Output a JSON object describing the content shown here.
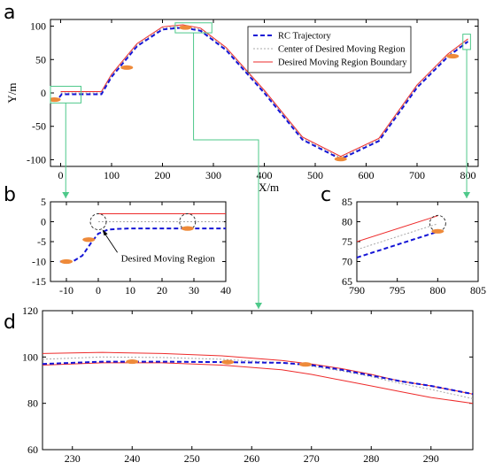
{
  "panels": {
    "a": "a",
    "b": "b",
    "c": "c",
    "d": "d"
  },
  "colors": {
    "trajectory": "#1515d6",
    "center": "#a8a8a8",
    "boundary": "#ee2b2b",
    "vehicle": "#ee8a3a",
    "zoom_box": "#4ec98a",
    "region_circle": "#222222"
  },
  "chart_data": [
    {
      "id": "a",
      "type": "line",
      "xlabel": "X/m",
      "ylabel": "Y/m",
      "xlim": [
        -20,
        820
      ],
      "ylim": [
        -110,
        110
      ],
      "xticks": [
        0,
        100,
        200,
        300,
        400,
        500,
        600,
        700,
        800
      ],
      "yticks": [
        -100,
        -50,
        0,
        50,
        100
      ],
      "legend": {
        "placement": "top-right",
        "entries": [
          "RC Trajectory",
          "Center of Desired Moving Region",
          "Desired Moving Region Boundary"
        ]
      },
      "series": [
        {
          "name": "RC Trajectory",
          "style": "dashed",
          "x": [
            -15,
            -8,
            -2,
            2,
            80,
            100,
            150,
            200,
            240,
            275,
            325,
            400,
            475,
            550,
            625,
            700,
            760,
            800
          ],
          "y": [
            -10,
            -10,
            -6,
            -2,
            -2,
            24,
            70,
            95,
            98,
            93,
            64,
            0,
            -70,
            -99,
            -72,
            8,
            54,
            77
          ]
        },
        {
          "name": "Center of Desired Moving Region",
          "style": "dotted",
          "x": [
            0,
            80,
            100,
            150,
            200,
            240,
            275,
            325,
            400,
            475,
            550,
            625,
            700,
            760,
            800
          ],
          "y": [
            0,
            0,
            26,
            72,
            97,
            100,
            95,
            66,
            2,
            -68,
            -97,
            -70,
            10,
            56,
            79
          ]
        },
        {
          "name": "Desired Moving Region Boundary",
          "style": "solid",
          "x": [
            0,
            80,
            100,
            150,
            200,
            240,
            275,
            325,
            400,
            475,
            550,
            625,
            700,
            760,
            800
          ],
          "y": [
            2,
            2,
            28,
            74,
            99,
            102,
            97,
            68,
            4,
            -66,
            -95,
            -68,
            12,
            58,
            81
          ]
        }
      ],
      "vehicles": [
        {
          "x": -12,
          "y": -10
        },
        {
          "x": 130,
          "y": 38
        },
        {
          "x": 245,
          "y": 98
        },
        {
          "x": 550,
          "y": -99
        },
        {
          "x": 770,
          "y": 55
        }
      ],
      "zoom_boxes": [
        {
          "target": "b",
          "x": [
            -20,
            40
          ],
          "y": [
            -15,
            10
          ]
        },
        {
          "target": "d",
          "x": [
            225,
            297
          ],
          "y": [
            90,
            105
          ]
        },
        {
          "target": "c",
          "x": [
            790,
            805
          ],
          "y": [
            65,
            88
          ]
        }
      ]
    },
    {
      "id": "b",
      "type": "line",
      "xlim": [
        -15,
        40
      ],
      "ylim": [
        -15,
        5
      ],
      "xticks": [
        -10,
        0,
        10,
        20,
        30,
        40
      ],
      "yticks": [
        -15,
        -10,
        -5,
        0,
        5
      ],
      "annotation": "Desired Moving Region",
      "series": [
        {
          "name": "RC Trajectory",
          "style": "dashed",
          "x": [
            -12,
            -8,
            -5,
            -2,
            0,
            3,
            6,
            10,
            40
          ],
          "y": [
            -10,
            -10,
            -8.5,
            -5,
            -3,
            -2,
            -1.8,
            -1.7,
            -1.7
          ]
        },
        {
          "name": "Center of Desired Moving Region",
          "style": "dotted",
          "x": [
            0,
            40
          ],
          "y": [
            0,
            0
          ]
        },
        {
          "name": "Desired Moving Region Boundary",
          "style": "solid",
          "x": [
            0,
            40
          ],
          "y": [
            2,
            2
          ]
        }
      ],
      "vehicles": [
        {
          "x": -10,
          "y": -10
        },
        {
          "x": -3,
          "y": -4.5
        },
        {
          "x": 28,
          "y": -1.7
        }
      ],
      "circles": [
        {
          "x": 0,
          "y": 0
        },
        {
          "x": 28,
          "y": 0
        }
      ]
    },
    {
      "id": "c",
      "type": "line",
      "xlim": [
        790,
        805
      ],
      "ylim": [
        65,
        85
      ],
      "xticks": [
        790,
        795,
        800,
        805
      ],
      "yticks": [
        65,
        70,
        75,
        80,
        85
      ],
      "series": [
        {
          "name": "RC Trajectory",
          "style": "dashed",
          "x": [
            790,
            800
          ],
          "y": [
            71,
            77.5
          ]
        },
        {
          "name": "Center of Desired Moving Region",
          "style": "dotted",
          "x": [
            790,
            800
          ],
          "y": [
            73,
            79.5
          ]
        },
        {
          "name": "Desired Moving Region Boundary",
          "style": "solid",
          "x": [
            790,
            800
          ],
          "y": [
            75,
            81.5
          ]
        }
      ],
      "vehicles": [
        {
          "x": 800,
          "y": 77.6
        }
      ],
      "circles": [
        {
          "x": 800,
          "y": 79.6
        }
      ]
    },
    {
      "id": "d",
      "type": "line",
      "xlim": [
        225,
        297
      ],
      "ylim": [
        60,
        120
      ],
      "xticks": [
        230,
        240,
        250,
        260,
        270,
        280,
        290
      ],
      "yticks": [
        60,
        80,
        100,
        120
      ],
      "series": [
        {
          "name": "RC Trajectory",
          "style": "dashed",
          "x": [
            225,
            235,
            245,
            255,
            265,
            270,
            275,
            280,
            285,
            290,
            297
          ],
          "y": [
            97,
            98,
            98,
            97.8,
            97.5,
            96.5,
            94.5,
            92,
            89.5,
            87.5,
            84
          ]
        },
        {
          "name": "Center of Desired Moving Region",
          "style": "dotted",
          "x": [
            225,
            235,
            245,
            255,
            265,
            270,
            275,
            280,
            285,
            290,
            297
          ],
          "y": [
            99,
            100,
            99.8,
            99,
            97.5,
            96,
            94,
            91.5,
            88.5,
            86,
            82
          ]
        },
        {
          "name": "Desired Moving Region Boundary",
          "style": "solid",
          "x": [
            225,
            235,
            245,
            255,
            265,
            270,
            275,
            280,
            285,
            290,
            297
          ],
          "y": [
            101.5,
            102,
            101.5,
            100.5,
            98.5,
            97,
            95,
            92.5,
            89.5,
            87.5,
            84
          ]
        },
        {
          "name": "Desired Moving Region Boundary",
          "style": "solid",
          "x": [
            225,
            235,
            245,
            255,
            265,
            270,
            275,
            280,
            285,
            290,
            297
          ],
          "y": [
            96.5,
            97.5,
            97.5,
            96.5,
            94.5,
            92.5,
            90,
            87.5,
            85,
            82.5,
            80
          ]
        }
      ],
      "vehicles": [
        {
          "x": 240,
          "y": 98
        },
        {
          "x": 256,
          "y": 97.8
        },
        {
          "x": 269,
          "y": 96.8
        }
      ]
    }
  ]
}
